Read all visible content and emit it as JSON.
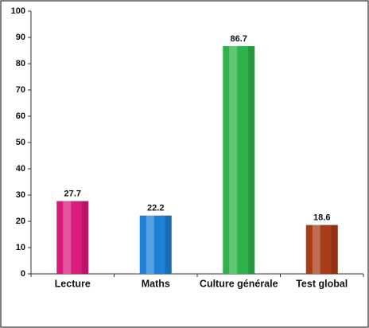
{
  "chart_data": {
    "type": "bar",
    "categories": [
      "Lecture",
      "Maths",
      "Culture générale",
      "Test global"
    ],
    "values": [
      27.7,
      22.2,
      86.7,
      18.6
    ],
    "colors": [
      "#d81b7c",
      "#1e7fd6",
      "#2eb34c",
      "#a83c16"
    ],
    "ylim": [
      0,
      100
    ],
    "yticks": [
      0,
      10,
      20,
      30,
      40,
      50,
      60,
      70,
      80,
      90,
      100
    ]
  }
}
